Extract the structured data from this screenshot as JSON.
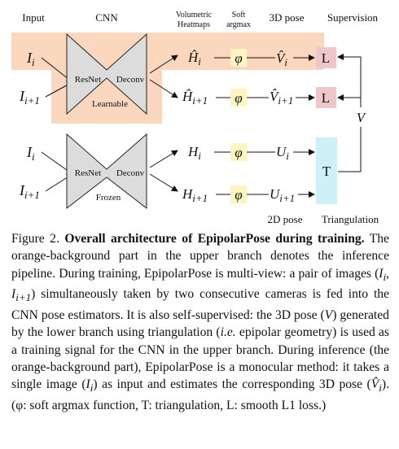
{
  "headers": {
    "input": "Input",
    "cnn": "CNN",
    "heatmaps_line1": "Volumetric",
    "heatmaps_line2": "Heatmaps",
    "softargmax_line1": "Soft",
    "softargmax_line2": "argmax",
    "pose3d": "3D pose",
    "supervision": "Supervision"
  },
  "upper": {
    "input1": "I",
    "input1_sub": "i",
    "input2": "I",
    "input2_sub": "i+1",
    "resnet": "ResNet",
    "deconv": "Deconv",
    "tag": "Learnable",
    "heat1": "Ĥ",
    "heat1_sub": "i",
    "heat2": "Ĥ",
    "heat2_sub": "i+1",
    "phi": "φ",
    "pose1": "V̂",
    "pose1_sub": "i",
    "pose2": "V̂",
    "pose2_sub": "i+1",
    "loss": "L"
  },
  "lower": {
    "input1": "I",
    "input1_sub": "i",
    "input2": "I",
    "input2_sub": "i+1",
    "resnet": "ResNet",
    "deconv": "Deconv",
    "tag": "Frozen",
    "heat1": "H",
    "heat1_sub": "i",
    "heat2": "H",
    "heat2_sub": "i+1",
    "phi": "φ",
    "pose1": "U",
    "pose1_sub": "i",
    "pose2": "U",
    "pose2_sub": "i+1",
    "triangulation": "T"
  },
  "v_label": "V",
  "footer": {
    "pose2d": "2D pose",
    "triangulation": "Triangulation"
  },
  "caption": {
    "fig": "Figure 2.",
    "title": "Overall architecture of EpipolarPose during training.",
    "s1": "The orange-background part in the upper branch denotes the inference pipeline. During training, EpipolarPose is multi-view: a pair of images (",
    "s1_math": "I",
    "s1_sub": "i",
    "s1_sep": ", ",
    "s1_math2": "I",
    "s1_sub2": "i+1",
    "s2": ") simultaneously taken by two consecutive cameras is fed into the CNN pose estimators. It is also self-supervised: the 3D pose (",
    "s2_math": "V",
    "s3": ") generated by the lower branch using triangulation (",
    "s3_ie": "i.e.",
    "s4": " epipolar geometry) is used as a training signal for the CNN in the upper branch. During inference (the orange-background part), EpipolarPose is a monocular method: it takes a single image (",
    "s4_math": "I",
    "s4_sub": "i",
    "s5": ") as input and estimates the corresponding 3D pose (",
    "s5_math": "V̂",
    "s5_sub": "i",
    "s6": "). (φ: soft argmax function, T: triangulation, L: smooth L1 loss.)"
  },
  "colors": {
    "orange_bg": "#fbd7bd",
    "loss_box": "#f0c7c8",
    "tri_box": "#cdf1f7",
    "phi_bg": "#fbf6bf",
    "network_fill": "#dcdcdc"
  }
}
